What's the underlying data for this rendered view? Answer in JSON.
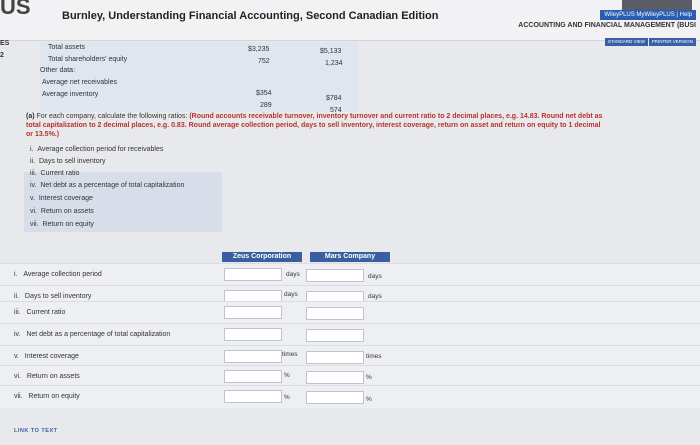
{
  "header": {
    "logo": "US",
    "book_title": "Burnley, Understanding Financial Accounting, Second Canadian Edition",
    "util_links": "WileyPLUS  MyWileyPLUS | Help",
    "course": "ACCOUNTING AND FINANCIAL MANAGEMENT (BUSI",
    "standard_view": "STANDARD VIEW",
    "printer_version": "PRINTER VERSION"
  },
  "side": [
    "ES",
    "2"
  ],
  "data_table": {
    "rows": [
      {
        "label": "Total assets",
        "zeus": "$3,235",
        "mars": "$5,133"
      },
      {
        "label": "Total shareholders' equity",
        "zeus": "752",
        "mars": "1,234"
      },
      {
        "label": "Other data:",
        "zeus": "",
        "mars": ""
      },
      {
        "label": "Average net receivables",
        "zeus": "$354",
        "mars": "$784"
      },
      {
        "label": "Average inventory",
        "zeus": "289",
        "mars": "574"
      }
    ]
  },
  "question": {
    "part": "(a)",
    "text": "For each company, calculate the following ratios:",
    "instruction1": "(Round accounts receivable turnover, inventory turnover and current ratio to 2 decimal places, e.g. 14.83. Round net debt as",
    "instruction2": "total capitalization to 2 decimal places, e.g. 0.83. Round average collection period, days to sell inventory, interest coverage, return on asset and return on equity to 1 decimal",
    "instruction3": "or 13.5%.)"
  },
  "ratio_list": [
    {
      "num": "i.",
      "label": "Average collection period for receivables"
    },
    {
      "num": "ii.",
      "label": "Days to sell inventory"
    },
    {
      "num": "iii.",
      "label": "Current ratio"
    },
    {
      "num": "iv.",
      "label": "Net debt as a percentage of total capitalization"
    },
    {
      "num": "v.",
      "label": "Interest coverage"
    },
    {
      "num": "vi.",
      "label": "Return on assets"
    },
    {
      "num": "vii.",
      "label": "Return on equity"
    }
  ],
  "answer_table": {
    "col1": "Zeus Corporation",
    "col2": "Mars Company",
    "rows": [
      {
        "num": "i.",
        "label": "Average collection period",
        "unit1": "days",
        "unit2": "days"
      },
      {
        "num": "ii.",
        "label": "Days to sell inventory",
        "unit1": "days",
        "unit2": "days"
      },
      {
        "num": "iii.",
        "label": "Current ratio",
        "unit1": "",
        "unit2": ""
      },
      {
        "num": "iv.",
        "label": "Net debt as a percentage of total capitalization",
        "unit1": "",
        "unit2": ""
      },
      {
        "num": "v.",
        "label": "Interest coverage",
        "unit1": "times",
        "unit2": "times"
      },
      {
        "num": "vi.",
        "label": "Return on assets",
        "unit1": "%",
        "unit2": "%"
      },
      {
        "num": "vii.",
        "label": "Return on equity",
        "unit1": "%",
        "unit2": "%"
      }
    ]
  },
  "link_to_text": "LINK TO TEXT"
}
